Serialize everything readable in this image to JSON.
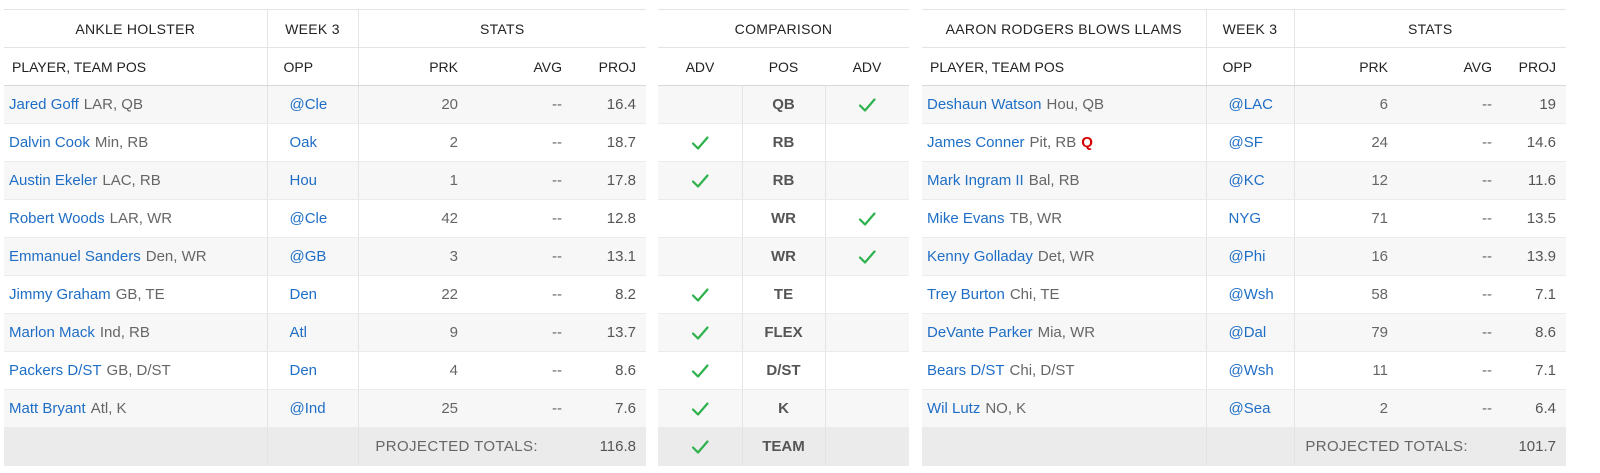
{
  "left_team": {
    "name": "ANKLE HOLSTER",
    "week": "WEEK 3",
    "stats_label": "STATS",
    "col_player": "PLAYER, TEAM POS",
    "col_opp": "OPP",
    "col_prk": "PRK",
    "col_avg": "AVG",
    "col_proj": "PROJ",
    "players": [
      {
        "name": "Jared Goff",
        "meta": "LAR, QB",
        "opp": "@Cle",
        "prk": "20",
        "avg": "--",
        "proj": "16.4"
      },
      {
        "name": "Dalvin Cook",
        "meta": "Min, RB",
        "opp": "Oak",
        "prk": "2",
        "avg": "--",
        "proj": "18.7"
      },
      {
        "name": "Austin Ekeler",
        "meta": "LAC, RB",
        "opp": "Hou",
        "prk": "1",
        "avg": "--",
        "proj": "17.8"
      },
      {
        "name": "Robert Woods",
        "meta": "LAR, WR",
        "opp": "@Cle",
        "prk": "42",
        "avg": "--",
        "proj": "12.8"
      },
      {
        "name": "Emmanuel Sanders",
        "meta": "Den, WR",
        "opp": "@GB",
        "prk": "3",
        "avg": "--",
        "proj": "13.1"
      },
      {
        "name": "Jimmy Graham",
        "meta": "GB, TE",
        "opp": "Den",
        "prk": "22",
        "avg": "--",
        "proj": "8.2"
      },
      {
        "name": "Marlon Mack",
        "meta": "Ind, RB",
        "opp": "Atl",
        "prk": "9",
        "avg": "--",
        "proj": "13.7"
      },
      {
        "name": "Packers D/ST",
        "meta": "GB, D/ST",
        "opp": "Den",
        "prk": "4",
        "avg": "--",
        "proj": "8.6"
      },
      {
        "name": "Matt Bryant",
        "meta": "Atl, K",
        "opp": "@Ind",
        "prk": "25",
        "avg": "--",
        "proj": "7.6"
      }
    ],
    "totals_label": "PROJECTED TOTALS:",
    "totals_value": "116.8"
  },
  "comparison": {
    "title": "COMPARISON",
    "col_adv_left": "ADV",
    "col_pos": "POS",
    "col_adv_right": "ADV",
    "rows": [
      {
        "pos": "QB",
        "left_adv": false,
        "right_adv": true
      },
      {
        "pos": "RB",
        "left_adv": true,
        "right_adv": false
      },
      {
        "pos": "RB",
        "left_adv": true,
        "right_adv": false
      },
      {
        "pos": "WR",
        "left_adv": false,
        "right_adv": true
      },
      {
        "pos": "WR",
        "left_adv": false,
        "right_adv": true
      },
      {
        "pos": "TE",
        "left_adv": true,
        "right_adv": false
      },
      {
        "pos": "FLEX",
        "left_adv": true,
        "right_adv": false
      },
      {
        "pos": "D/ST",
        "left_adv": true,
        "right_adv": false
      },
      {
        "pos": "K",
        "left_adv": true,
        "right_adv": false
      },
      {
        "pos": "TEAM",
        "left_adv": true,
        "right_adv": false
      }
    ]
  },
  "right_team": {
    "name": "AARON RODGERS BLOWS LLAMS",
    "week": "WEEK 3",
    "stats_label": "STATS",
    "col_player": "PLAYER, TEAM POS",
    "col_opp": "OPP",
    "col_prk": "PRK",
    "col_avg": "AVG",
    "col_proj": "PROJ",
    "players": [
      {
        "name": "Deshaun Watson",
        "meta": "Hou, QB",
        "opp": "@LAC",
        "prk": "6",
        "avg": "--",
        "proj": "19"
      },
      {
        "name": "James Conner",
        "meta": "Pit, RB",
        "injury": "Q",
        "opp": "@SF",
        "prk": "24",
        "avg": "--",
        "proj": "14.6"
      },
      {
        "name": "Mark Ingram II",
        "meta": "Bal, RB",
        "opp": "@KC",
        "prk": "12",
        "avg": "--",
        "proj": "11.6"
      },
      {
        "name": "Mike Evans",
        "meta": "TB, WR",
        "opp": "NYG",
        "prk": "71",
        "avg": "--",
        "proj": "13.5"
      },
      {
        "name": "Kenny Golladay",
        "meta": "Det, WR",
        "opp": "@Phi",
        "prk": "16",
        "avg": "--",
        "proj": "13.9"
      },
      {
        "name": "Trey Burton",
        "meta": "Chi, TE",
        "opp": "@Wsh",
        "prk": "58",
        "avg": "--",
        "proj": "7.1"
      },
      {
        "name": "DeVante Parker",
        "meta": "Mia, WR",
        "opp": "@Dal",
        "prk": "79",
        "avg": "--",
        "proj": "8.6"
      },
      {
        "name": "Bears D/ST",
        "meta": "Chi, D/ST",
        "opp": "@Wsh",
        "prk": "11",
        "avg": "--",
        "proj": "7.1"
      },
      {
        "name": "Wil Lutz",
        "meta": "NO, K",
        "opp": "@Sea",
        "prk": "2",
        "avg": "--",
        "proj": "6.4"
      }
    ],
    "totals_label": "PROJECTED TOTALS:",
    "totals_value": "101.7"
  },
  "colors": {
    "link": "#1f6ec6",
    "check": "#2db14b",
    "injury": "#d50000",
    "totals_bg": "#ebebeb",
    "row_alt": "#f7f7f7"
  },
  "icons": {
    "advantage": "check-icon"
  }
}
